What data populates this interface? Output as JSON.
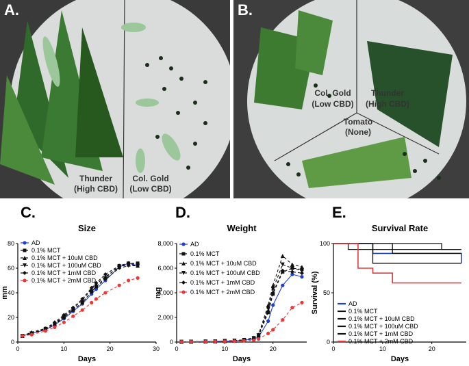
{
  "panel_a": {
    "letter": "A.",
    "labels": [
      {
        "line1": "Thunder",
        "line2": "(High CBD)"
      },
      {
        "line1": "Col. Gold",
        "line2": "(Low CBD)"
      }
    ]
  },
  "panel_b": {
    "letter": "B.",
    "labels": [
      {
        "line1": "Col. Gold",
        "line2": "(Low CBD)"
      },
      {
        "line1": "Thunder",
        "line2": "(High CBD)"
      },
      {
        "line1": "Tomato",
        "line2": "(None)"
      }
    ]
  },
  "colors": {
    "ad": "#1f3fd1",
    "red": "#e8393a",
    "black": "#111111"
  },
  "chart_data": [
    {
      "id": "C",
      "letter": "C.",
      "type": "line",
      "title": "Size",
      "xlabel": "Days",
      "ylabel": "mm",
      "xlim": [
        0,
        30
      ],
      "ylim": [
        0,
        80
      ],
      "xticks": [
        "0",
        "10",
        "20",
        "30"
      ],
      "yticks": [
        "0",
        "20",
        "40",
        "60",
        "80"
      ],
      "legend": [
        "AD",
        "0.1% MCT",
        "0.1% MCT + 10uM CBD",
        "0.1% MCT + 100uM CBD",
        "0.1% MCT + 1mM CBD",
        "0.1% MCT + 2mM CBD"
      ],
      "x": [
        1,
        3,
        6,
        8,
        10,
        12,
        14,
        16,
        17,
        19,
        22,
        24,
        26
      ],
      "series": [
        {
          "name": "AD",
          "values": [
            5,
            7,
            10,
            14,
            19,
            25,
            31,
            39,
            43,
            50,
            61,
            64,
            62
          ]
        },
        {
          "name": "0.1% MCT",
          "values": [
            5,
            7,
            11,
            15,
            20,
            26,
            32,
            41,
            45,
            52,
            62,
            64,
            64
          ]
        },
        {
          "name": "0.1% MCT + 10uM CBD",
          "values": [
            5,
            8,
            11,
            15,
            21,
            27,
            34,
            43,
            47,
            53,
            61,
            63,
            62
          ]
        },
        {
          "name": "0.1% MCT + 100uM CBD",
          "values": [
            5,
            7,
            10,
            14,
            20,
            26,
            32,
            41,
            45,
            51,
            60,
            62,
            62
          ]
        },
        {
          "name": "0.1% MCT + 1mM CBD",
          "values": [
            5,
            7,
            11,
            16,
            22,
            28,
            35,
            44,
            48,
            55,
            62,
            64,
            63
          ]
        },
        {
          "name": "0.1% MCT + 2mM CBD",
          "values": [
            5,
            6,
            9,
            12,
            16,
            21,
            26,
            32,
            35,
            40,
            46,
            50,
            52
          ]
        }
      ]
    },
    {
      "id": "D",
      "letter": "D.",
      "type": "line",
      "title": "Weight",
      "xlabel": "Days",
      "ylabel": "mg",
      "xlim": [
        0,
        27
      ],
      "ylim": [
        0,
        8000
      ],
      "xticks": [
        "0",
        "10",
        "20"
      ],
      "yticks": [
        "0",
        "2,000",
        "4,000",
        "6,000",
        "8,000"
      ],
      "legend": [
        "AD",
        "0.1% MCT",
        "0.1% MCT + 10uM CBD",
        "0.1% MCT + 100uM CBD",
        "0.1% MCT + 1mM CBD",
        "0.1% MCT + 2mM CBD"
      ],
      "x": [
        1,
        3,
        6,
        8,
        10,
        12,
        14,
        16,
        17,
        19,
        20,
        22,
        24,
        26
      ],
      "series": [
        {
          "name": "AD",
          "values": [
            20,
            30,
            40,
            50,
            70,
            100,
            150,
            250,
            400,
            1700,
            3000,
            4600,
            5500,
            5300
          ]
        },
        {
          "name": "0.1% MCT",
          "values": [
            20,
            30,
            40,
            50,
            80,
            110,
            170,
            300,
            500,
            2400,
            3900,
            5700,
            6000,
            5900
          ]
        },
        {
          "name": "0.1% MCT + 10uM CBD",
          "values": [
            20,
            30,
            40,
            50,
            80,
            120,
            190,
            350,
            600,
            3000,
            4600,
            7000,
            6300,
            6100
          ]
        },
        {
          "name": "0.1% MCT + 100uM CBD",
          "values": [
            20,
            30,
            40,
            50,
            80,
            110,
            170,
            320,
            550,
            2700,
            4300,
            6300,
            6000,
            5800
          ]
        },
        {
          "name": "0.1% MCT + 1mM CBD",
          "values": [
            20,
            30,
            40,
            50,
            80,
            110,
            170,
            300,
            500,
            2500,
            4000,
            5800,
            5700,
            5600
          ]
        },
        {
          "name": "0.1% MCT + 2mM CBD",
          "values": [
            20,
            25,
            30,
            40,
            50,
            70,
            100,
            150,
            250,
            700,
            1000,
            1800,
            2800,
            3200
          ]
        }
      ]
    },
    {
      "id": "E",
      "letter": "E.",
      "type": "line",
      "title": "Survival Rate",
      "xlabel": "Days",
      "ylabel": "Survival (%)",
      "xlim": [
        0,
        27
      ],
      "ylim": [
        0,
        100
      ],
      "xticks": [
        "0",
        "10",
        "20"
      ],
      "yticks": [
        "0",
        "50",
        "100"
      ],
      "legend": [
        "AD",
        "0.1% MCT",
        "0.1% MCT + 10uM CBD",
        "0.1% MCT + 100uM CBD",
        "0.1% MCT + 1mM CBD",
        "0.1% MCT + 2mM CBD"
      ],
      "series": [
        {
          "name": "AD",
          "steps": [
            [
              0,
              100
            ],
            [
              8,
              100
            ],
            [
              8,
              90
            ],
            [
              26,
              90
            ],
            [
              26,
              80
            ]
          ]
        },
        {
          "name": "0.1% MCT",
          "steps": [
            [
              0,
              100
            ],
            [
              8,
              100
            ],
            [
              8,
              80
            ],
            [
              26,
              80
            ]
          ]
        },
        {
          "name": "0.1% MCT + 10uM CBD",
          "steps": [
            [
              0,
              100
            ],
            [
              22,
              100
            ],
            [
              22,
              94
            ],
            [
              26,
              94
            ]
          ]
        },
        {
          "name": "0.1% MCT + 100uM CBD",
          "steps": [
            [
              0,
              100
            ],
            [
              3,
              100
            ],
            [
              3,
              94
            ],
            [
              26,
              94
            ]
          ]
        },
        {
          "name": "0.1% MCT + 1mM CBD",
          "steps": [
            [
              0,
              100
            ],
            [
              12,
              100
            ],
            [
              12,
              90
            ],
            [
              26,
              90
            ]
          ]
        },
        {
          "name": "0.1% MCT + 2mM CBD",
          "steps": [
            [
              0,
              100
            ],
            [
              5,
              100
            ],
            [
              5,
              75
            ],
            [
              8,
              75
            ],
            [
              8,
              70
            ],
            [
              12,
              70
            ],
            [
              12,
              60
            ],
            [
              26,
              60
            ]
          ]
        }
      ]
    }
  ]
}
